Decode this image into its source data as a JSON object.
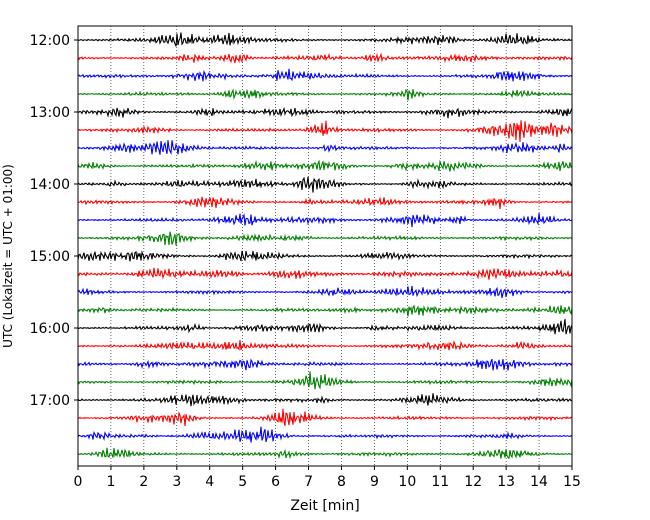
{
  "chart_data": {
    "type": "line",
    "title": "",
    "xlabel": "Zeit  [min]",
    "ylabel": "UTC (Lokalzeit = UTC + 01:00)",
    "xlim": [
      0,
      15
    ],
    "x_ticks": [
      "0",
      "1",
      "2",
      "3",
      "4",
      "5",
      "6",
      "7",
      "8",
      "9",
      "10",
      "11",
      "12",
      "13",
      "14",
      "15"
    ],
    "y_ticks": [
      "12:00",
      "13:00",
      "14:00",
      "15:00",
      "16:00",
      "17:00"
    ],
    "grid": "vertical dotted lines at each minute",
    "trace_interval_minutes": 15,
    "trace_start": "12:00",
    "trace_count": 24,
    "trace_colors": [
      "#000000",
      "#ff0000",
      "#0000ff",
      "#008000"
    ],
    "series_description": "helicorder seismogram: one 15-minute trace per row, colors cycling black, red, blue, green"
  }
}
